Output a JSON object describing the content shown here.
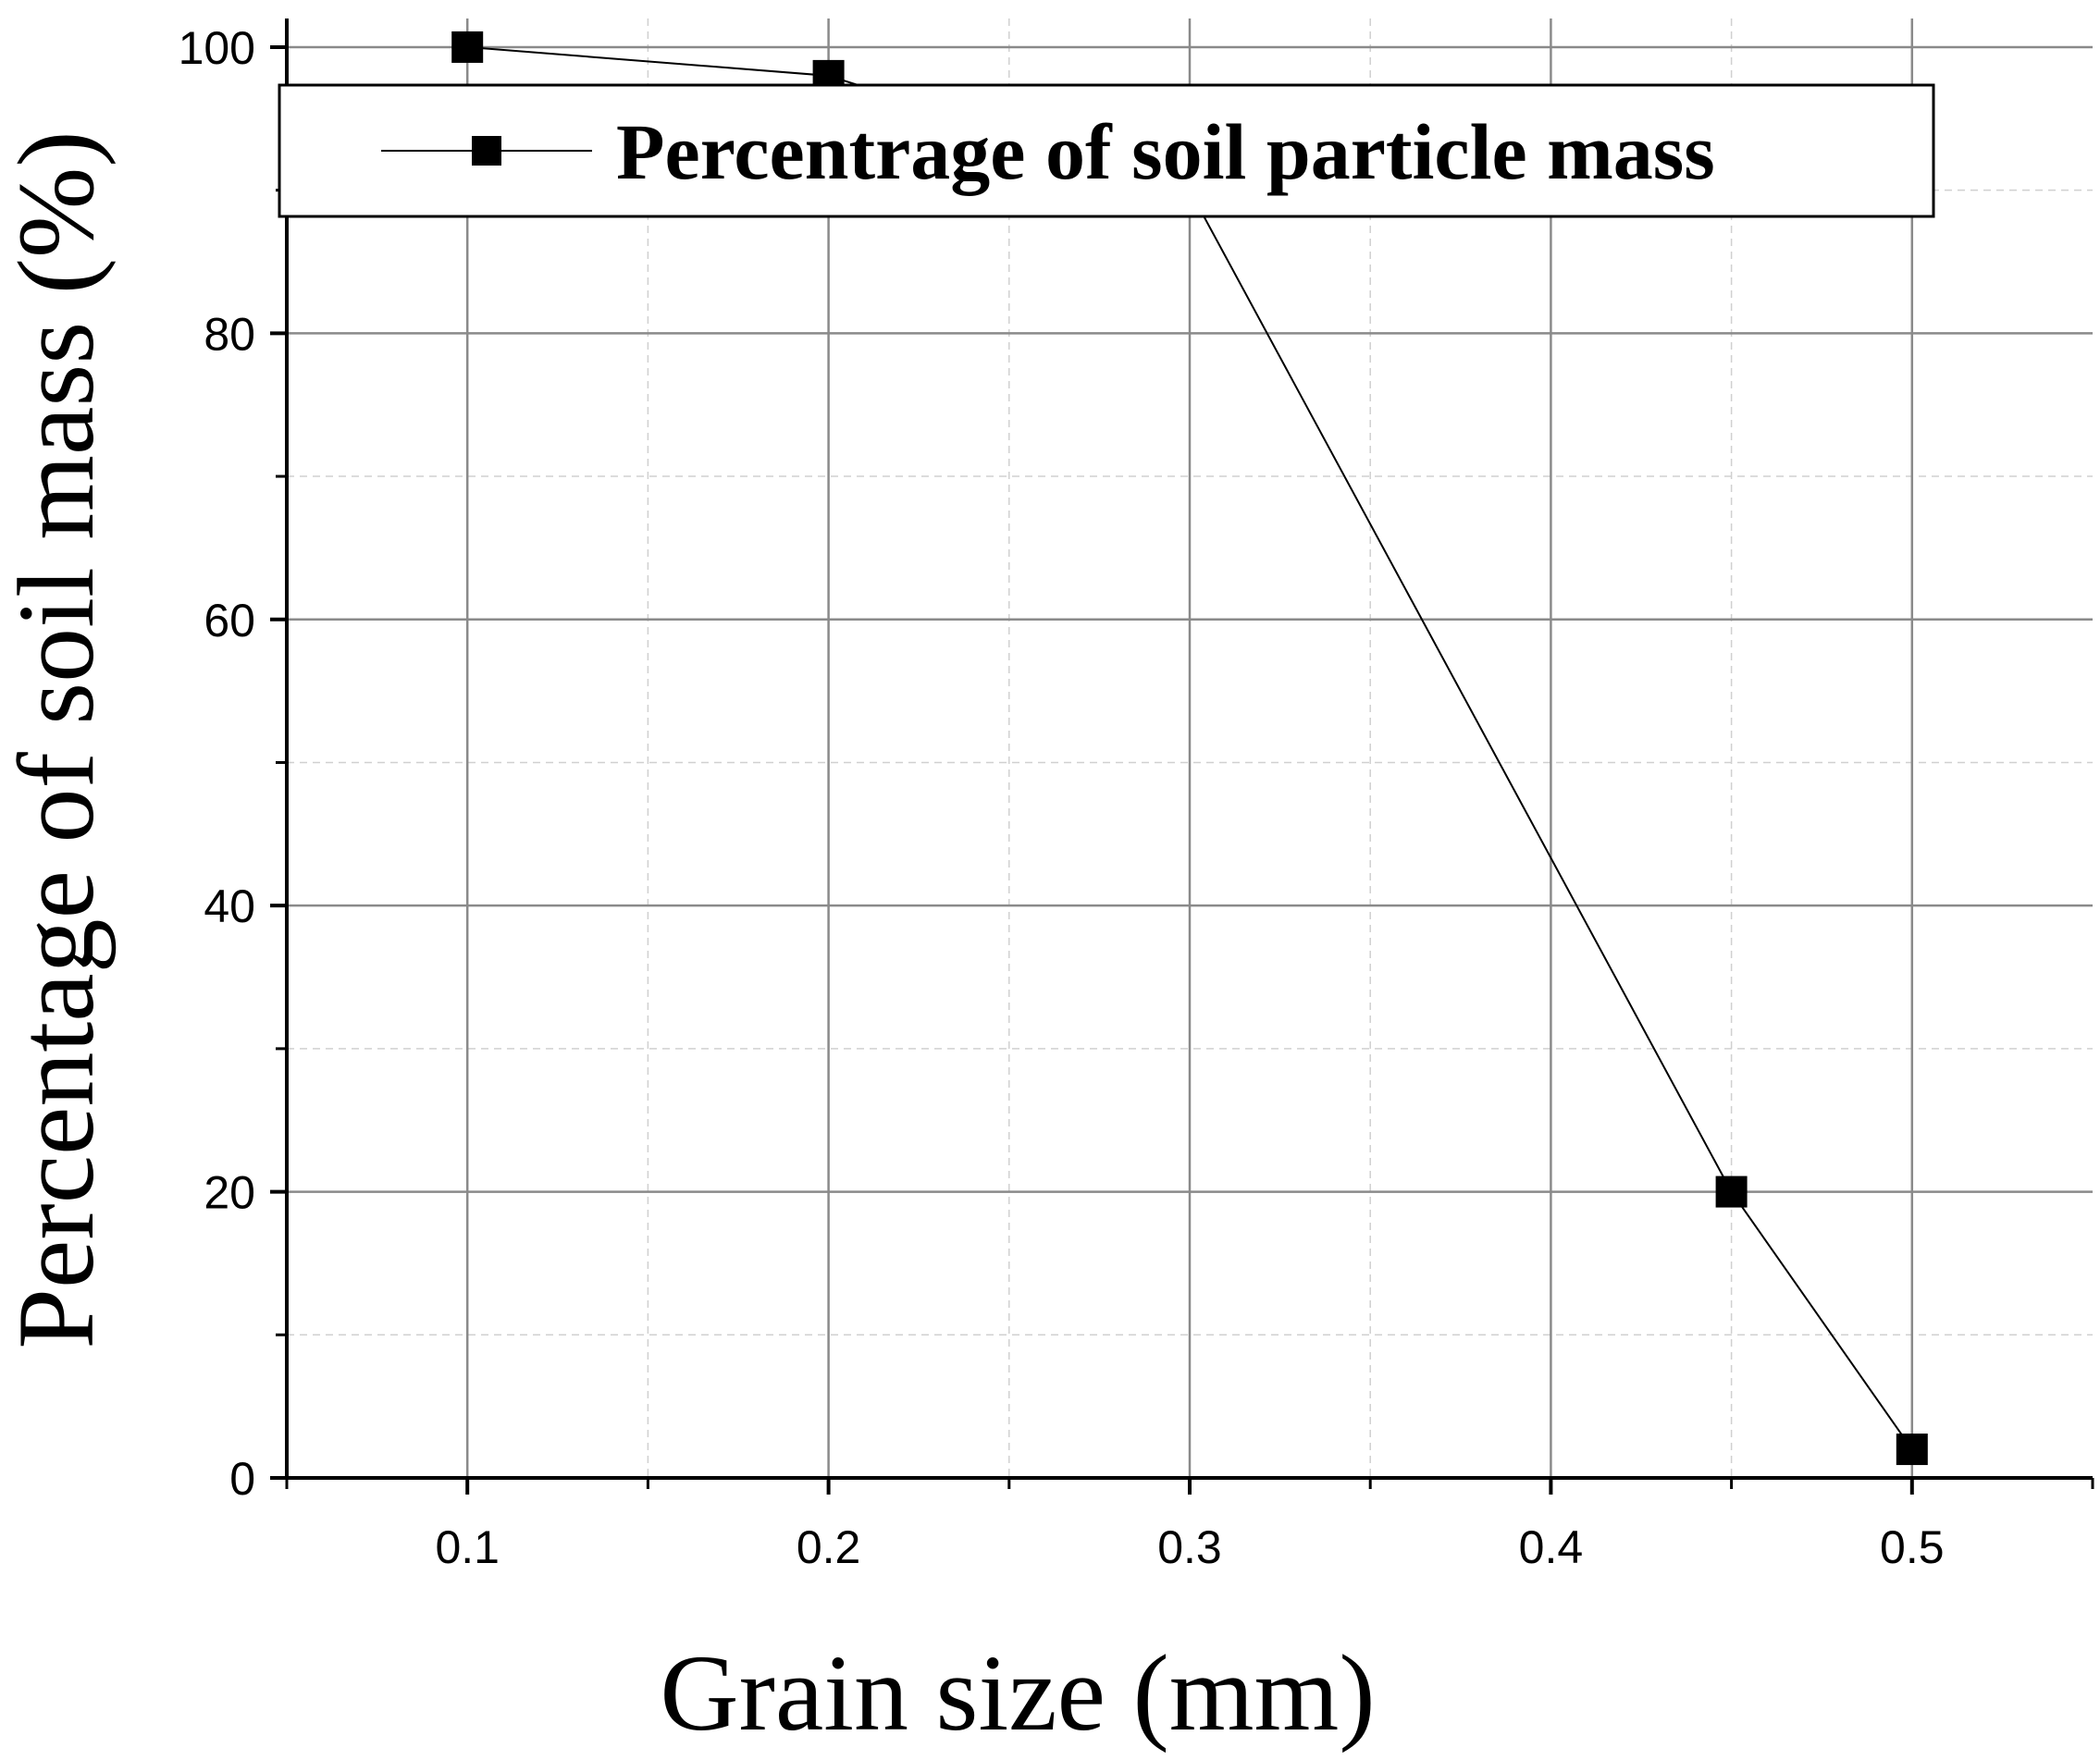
{
  "chart_data": {
    "type": "line",
    "title": "",
    "xlabel": "Grain size (mm)",
    "ylabel": "Percentage of soil mass (%)",
    "xlim": [
      0.05,
      0.55
    ],
    "ylim": [
      0,
      102
    ],
    "x_ticks": [
      0.1,
      0.2,
      0.3,
      0.4,
      0.5
    ],
    "x_tick_labels": [
      "0.1",
      "0.2",
      "0.3",
      "0.4",
      "0.5"
    ],
    "y_ticks": [
      0,
      20,
      40,
      60,
      80,
      100
    ],
    "y_tick_labels": [
      "0",
      "20",
      "40",
      "60",
      "80",
      "100"
    ],
    "grid": true,
    "legend_position": "top",
    "series": [
      {
        "name": "Percentrage of soil particle mass",
        "marker": "square",
        "color": "#000000",
        "x": [
          0.1,
          0.2,
          0.3,
          0.45,
          0.5
        ],
        "y": [
          100,
          98,
          90,
          20,
          2
        ]
      }
    ]
  }
}
